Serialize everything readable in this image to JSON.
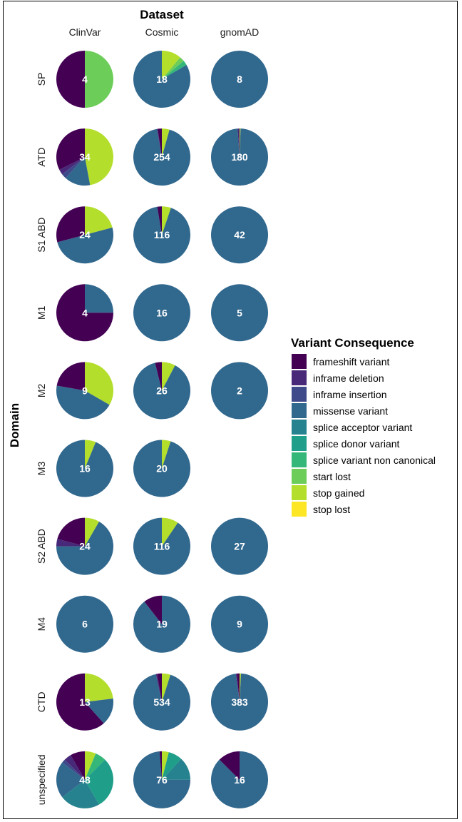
{
  "chart_data": {
    "type": "pie",
    "column_title": "Dataset",
    "row_title": "Domain",
    "columns": [
      "ClinVar",
      "Cosmic",
      "gnomAD"
    ],
    "rows": [
      "SP",
      "ATD",
      "S1 ABD",
      "M1",
      "M2",
      "M3",
      "S2 ABD",
      "M4",
      "CTD",
      "unspecified"
    ],
    "legend": {
      "title": "Variant Consequence",
      "entries": [
        {
          "name": "frameshift variant",
          "color": "#440154"
        },
        {
          "name": "inframe deletion",
          "color": "#482878"
        },
        {
          "name": "inframe insertion",
          "color": "#3E4A89"
        },
        {
          "name": "missense variant",
          "color": "#31688E"
        },
        {
          "name": "splice acceptor variant",
          "color": "#26828E"
        },
        {
          "name": "splice donor variant",
          "color": "#1F9E89"
        },
        {
          "name": "splice variant non canonical",
          "color": "#35B779"
        },
        {
          "name": "start lost",
          "color": "#6DCD59"
        },
        {
          "name": "stop gained",
          "color": "#B4DE2C"
        },
        {
          "name": "stop lost",
          "color": "#FDE725"
        }
      ]
    },
    "panels": [
      {
        "row": "SP",
        "dataset": "ClinVar",
        "label": "4",
        "slices": [
          {
            "consequence": "frameshift variant",
            "value": 2
          },
          {
            "consequence": "start lost",
            "value": 2
          }
        ]
      },
      {
        "row": "SP",
        "dataset": "Cosmic",
        "label": "18",
        "slices": [
          {
            "consequence": "missense variant",
            "value": 15
          },
          {
            "consequence": "splice variant non canonical",
            "value": 0.5
          },
          {
            "consequence": "start lost",
            "value": 0.5
          },
          {
            "consequence": "stop gained",
            "value": 2
          }
        ]
      },
      {
        "row": "SP",
        "dataset": "gnomAD",
        "label": "8",
        "slices": [
          {
            "consequence": "missense variant",
            "value": 8
          }
        ]
      },
      {
        "row": "ATD",
        "dataset": "ClinVar",
        "label": "34",
        "slices": [
          {
            "consequence": "frameshift variant",
            "value": 11
          },
          {
            "consequence": "inframe deletion",
            "value": 1
          },
          {
            "consequence": "inframe insertion",
            "value": 1
          },
          {
            "consequence": "missense variant",
            "value": 5
          },
          {
            "consequence": "stop gained",
            "value": 16
          }
        ]
      },
      {
        "row": "ATD",
        "dataset": "Cosmic",
        "label": "254",
        "slices": [
          {
            "consequence": "frameshift variant",
            "value": 6
          },
          {
            "consequence": "inframe deletion",
            "value": 1
          },
          {
            "consequence": "missense variant",
            "value": 236
          },
          {
            "consequence": "stop gained",
            "value": 11
          }
        ]
      },
      {
        "row": "ATD",
        "dataset": "gnomAD",
        "label": "180",
        "slices": [
          {
            "consequence": "inframe deletion",
            "value": 2
          },
          {
            "consequence": "missense variant",
            "value": 177
          },
          {
            "consequence": "stop gained",
            "value": 1
          }
        ]
      },
      {
        "row": "S1 ABD",
        "dataset": "ClinVar",
        "label": "24",
        "slices": [
          {
            "consequence": "frameshift variant",
            "value": 7
          },
          {
            "consequence": "missense variant",
            "value": 12
          },
          {
            "consequence": "stop gained",
            "value": 5
          }
        ]
      },
      {
        "row": "S1 ABD",
        "dataset": "Cosmic",
        "label": "116",
        "slices": [
          {
            "consequence": "frameshift variant",
            "value": 3
          },
          {
            "consequence": "missense variant",
            "value": 107
          },
          {
            "consequence": "stop gained",
            "value": 6
          }
        ]
      },
      {
        "row": "S1 ABD",
        "dataset": "gnomAD",
        "label": "42",
        "slices": [
          {
            "consequence": "missense variant",
            "value": 42
          }
        ]
      },
      {
        "row": "M1",
        "dataset": "ClinVar",
        "label": "4",
        "slices": [
          {
            "consequence": "frameshift variant",
            "value": 3
          },
          {
            "consequence": "missense variant",
            "value": 1
          }
        ]
      },
      {
        "row": "M1",
        "dataset": "Cosmic",
        "label": "16",
        "slices": [
          {
            "consequence": "missense variant",
            "value": 16
          }
        ]
      },
      {
        "row": "M1",
        "dataset": "gnomAD",
        "label": "5",
        "slices": [
          {
            "consequence": "missense variant",
            "value": 5
          }
        ]
      },
      {
        "row": "M2",
        "dataset": "ClinVar",
        "label": "9",
        "slices": [
          {
            "consequence": "frameshift variant",
            "value": 2
          },
          {
            "consequence": "missense variant",
            "value": 4
          },
          {
            "consequence": "stop gained",
            "value": 3
          }
        ]
      },
      {
        "row": "M2",
        "dataset": "Cosmic",
        "label": "26",
        "slices": [
          {
            "consequence": "frameshift variant",
            "value": 1
          },
          {
            "consequence": "missense variant",
            "value": 23
          },
          {
            "consequence": "stop gained",
            "value": 2
          }
        ]
      },
      {
        "row": "M2",
        "dataset": "gnomAD",
        "label": "2",
        "slices": [
          {
            "consequence": "missense variant",
            "value": 2
          }
        ]
      },
      {
        "row": "M3",
        "dataset": "ClinVar",
        "label": "16",
        "slices": [
          {
            "consequence": "missense variant",
            "value": 15
          },
          {
            "consequence": "stop gained",
            "value": 1
          }
        ]
      },
      {
        "row": "M3",
        "dataset": "Cosmic",
        "label": "20",
        "slices": [
          {
            "consequence": "missense variant",
            "value": 19
          },
          {
            "consequence": "stop gained",
            "value": 1
          }
        ]
      },
      {
        "row": "S2 ABD",
        "dataset": "ClinVar",
        "label": "24",
        "slices": [
          {
            "consequence": "frameshift variant",
            "value": 5
          },
          {
            "consequence": "inframe deletion",
            "value": 1
          },
          {
            "consequence": "missense variant",
            "value": 16
          },
          {
            "consequence": "stop gained",
            "value": 2
          }
        ]
      },
      {
        "row": "S2 ABD",
        "dataset": "Cosmic",
        "label": "116",
        "slices": [
          {
            "consequence": "missense variant",
            "value": 105
          },
          {
            "consequence": "stop gained",
            "value": 11
          }
        ]
      },
      {
        "row": "S2 ABD",
        "dataset": "gnomAD",
        "label": "27",
        "slices": [
          {
            "consequence": "missense variant",
            "value": 27
          }
        ]
      },
      {
        "row": "M4",
        "dataset": "ClinVar",
        "label": "6",
        "slices": [
          {
            "consequence": "missense variant",
            "value": 6
          }
        ]
      },
      {
        "row": "M4",
        "dataset": "Cosmic",
        "label": "19",
        "slices": [
          {
            "consequence": "missense variant",
            "value": 17
          },
          {
            "consequence": "frameshift variant",
            "value": 2
          }
        ]
      },
      {
        "row": "M4",
        "dataset": "gnomAD",
        "label": "9",
        "slices": [
          {
            "consequence": "missense variant",
            "value": 9
          }
        ]
      },
      {
        "row": "CTD",
        "dataset": "ClinVar",
        "label": "13",
        "slices": [
          {
            "consequence": "frameshift variant",
            "value": 8
          },
          {
            "consequence": "missense variant",
            "value": 2
          },
          {
            "consequence": "stop gained",
            "value": 3
          }
        ]
      },
      {
        "row": "CTD",
        "dataset": "Cosmic",
        "label": "534",
        "slices": [
          {
            "consequence": "frameshift variant",
            "value": 14
          },
          {
            "consequence": "inframe deletion",
            "value": 4
          },
          {
            "consequence": "missense variant",
            "value": 490
          },
          {
            "consequence": "stop gained",
            "value": 26
          }
        ]
      },
      {
        "row": "CTD",
        "dataset": "gnomAD",
        "label": "383",
        "slices": [
          {
            "consequence": "frameshift variant",
            "value": 6
          },
          {
            "consequence": "inframe deletion",
            "value": 2
          },
          {
            "consequence": "missense variant",
            "value": 372
          },
          {
            "consequence": "stop gained",
            "value": 3
          }
        ]
      },
      {
        "row": "unspecified",
        "dataset": "ClinVar",
        "label": "48",
        "slices": [
          {
            "consequence": "frameshift variant",
            "value": 4
          },
          {
            "consequence": "inframe deletion",
            "value": 2
          },
          {
            "consequence": "inframe insertion",
            "value": 1
          },
          {
            "consequence": "missense variant",
            "value": 10
          },
          {
            "consequence": "splice acceptor variant",
            "value": 11
          },
          {
            "consequence": "splice donor variant",
            "value": 14
          },
          {
            "consequence": "splice variant non canonical",
            "value": 3
          },
          {
            "consequence": "stop gained",
            "value": 3
          }
        ]
      },
      {
        "row": "unspecified",
        "dataset": "Cosmic",
        "label": "76",
        "slices": [
          {
            "consequence": "frameshift variant",
            "value": 1
          },
          {
            "consequence": "missense variant",
            "value": 56
          },
          {
            "consequence": "splice acceptor variant",
            "value": 10
          },
          {
            "consequence": "splice donor variant",
            "value": 6
          },
          {
            "consequence": "stop gained",
            "value": 3
          }
        ]
      },
      {
        "row": "unspecified",
        "dataset": "gnomAD",
        "label": "16",
        "slices": [
          {
            "consequence": "frameshift variant",
            "value": 2
          },
          {
            "consequence": "missense variant",
            "value": 14
          }
        ]
      }
    ]
  }
}
